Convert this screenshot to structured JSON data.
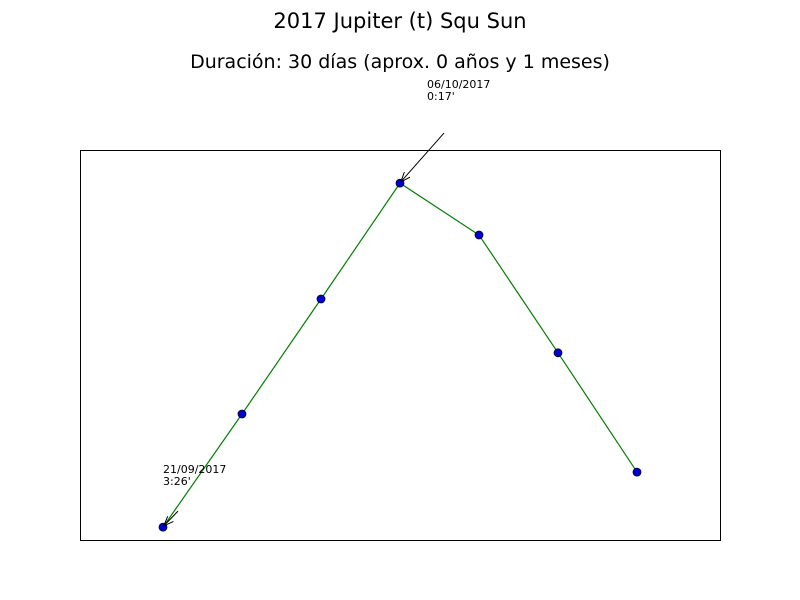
{
  "chart_data": {
    "type": "line",
    "title": "2017 Jupiter (t) Squ Sun",
    "subtitle": "Duración: 30 días (aprox. 0 años y 1 meses)",
    "xlabel": "",
    "ylabel": "",
    "grid": false,
    "axes_ticks": false,
    "x": [
      0,
      1,
      2,
      3,
      4,
      5,
      6
    ],
    "ylim": [
      0,
      100
    ],
    "xlim": [
      -1.05,
      7.05
    ],
    "series": [
      {
        "values": [
          3.3,
          32.3,
          61.8,
          91.5,
          78.2,
          48.0,
          17.4
        ],
        "line_color": "#008000",
        "marker_color": "#0000cc"
      }
    ],
    "annotations": [
      {
        "point_index": 0,
        "lines": [
          "21/09/2017",
          "3:26'"
        ]
      },
      {
        "point_index": 3,
        "lines": [
          "06/10/2017",
          "0:17'"
        ]
      }
    ]
  }
}
